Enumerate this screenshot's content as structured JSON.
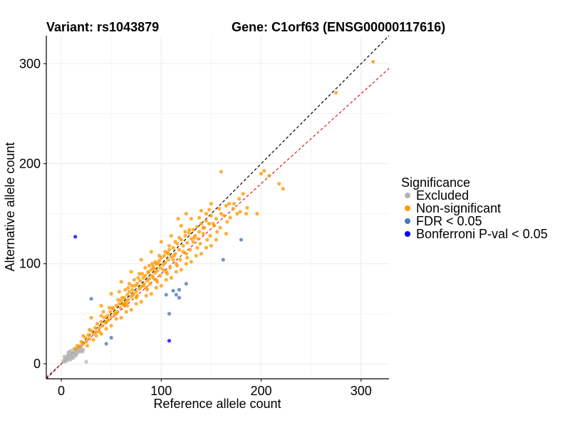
{
  "chart_data": {
    "type": "scatter",
    "title_left": "Variant: rs1043879",
    "title_right": "Gene: C1orf63 (ENSG00000117616)",
    "xlabel": "Reference allele count",
    "ylabel": "Alternative allele count",
    "xlim": [
      -15,
      328
    ],
    "ylim": [
      -15,
      328
    ],
    "xticks": [
      0,
      100,
      200,
      300
    ],
    "yticks": [
      0,
      100,
      200,
      300
    ],
    "grid": true,
    "legend_position": "right",
    "reference_lines": [
      {
        "name": "identity",
        "slope": 1.0,
        "intercept": 0,
        "color": "#000000",
        "dash": true
      },
      {
        "name": "fit",
        "slope": 0.9,
        "intercept": 0,
        "color": "#e31a1c",
        "dash": true
      }
    ],
    "legend": {
      "title": "Significance",
      "entries": [
        {
          "label": "Excluded",
          "color": "#b3b3b3"
        },
        {
          "label": "Non-significant",
          "color": "#ff9900"
        },
        {
          "label": "FDR < 0.05",
          "color": "#4a77b8"
        },
        {
          "label": "Bonferroni P-val < 0.05",
          "color": "#0000ff"
        }
      ]
    },
    "series": [
      {
        "name": "Excluded",
        "color": "#b3b3b3",
        "points": [
          [
            2,
            3
          ],
          [
            3,
            2
          ],
          [
            4,
            5
          ],
          [
            5,
            3
          ],
          [
            5,
            6
          ],
          [
            6,
            4
          ],
          [
            7,
            5
          ],
          [
            7,
            8
          ],
          [
            8,
            6
          ],
          [
            9,
            8
          ],
          [
            10,
            7
          ],
          [
            10,
            10
          ],
          [
            11,
            9
          ],
          [
            12,
            11
          ],
          [
            12,
            6
          ],
          [
            13,
            10
          ],
          [
            14,
            12
          ],
          [
            14,
            8
          ],
          [
            15,
            13
          ],
          [
            16,
            11
          ],
          [
            17,
            14
          ],
          [
            18,
            12
          ],
          [
            18,
            16
          ],
          [
            19,
            13
          ],
          [
            20,
            15
          ],
          [
            21,
            12
          ],
          [
            22,
            14
          ],
          [
            8,
            12
          ],
          [
            6,
            8
          ],
          [
            10,
            13
          ],
          [
            13,
            15
          ],
          [
            16,
            15
          ],
          [
            20,
            18
          ],
          [
            4,
            3
          ],
          [
            11,
            6
          ],
          [
            9,
            4
          ],
          [
            15,
            9
          ],
          [
            25,
            2
          ],
          [
            3,
            7
          ],
          [
            7,
            11
          ]
        ]
      },
      {
        "name": "Non-significant",
        "color": "#ff9900",
        "points": [
          [
            14,
            15
          ],
          [
            16,
            18
          ],
          [
            18,
            17
          ],
          [
            20,
            22
          ],
          [
            22,
            20
          ],
          [
            24,
            26
          ],
          [
            25,
            22
          ],
          [
            27,
            29
          ],
          [
            28,
            25
          ],
          [
            30,
            33
          ],
          [
            32,
            30
          ],
          [
            34,
            36
          ],
          [
            35,
            32
          ],
          [
            36,
            40
          ],
          [
            38,
            36
          ],
          [
            40,
            42
          ],
          [
            41,
            38
          ],
          [
            43,
            46
          ],
          [
            44,
            41
          ],
          [
            46,
            48
          ],
          [
            47,
            44
          ],
          [
            49,
            52
          ],
          [
            50,
            47
          ],
          [
            52,
            55
          ],
          [
            53,
            50
          ],
          [
            55,
            58
          ],
          [
            56,
            52
          ],
          [
            58,
            60
          ],
          [
            59,
            56
          ],
          [
            60,
            63
          ],
          [
            62,
            59
          ],
          [
            63,
            66
          ],
          [
            64,
            60
          ],
          [
            66,
            69
          ],
          [
            67,
            64
          ],
          [
            68,
            72
          ],
          [
            70,
            67
          ],
          [
            71,
            74
          ],
          [
            72,
            69
          ],
          [
            74,
            78
          ],
          [
            75,
            72
          ],
          [
            76,
            80
          ],
          [
            78,
            75
          ],
          [
            79,
            83
          ],
          [
            80,
            77
          ],
          [
            82,
            86
          ],
          [
            83,
            80
          ],
          [
            84,
            88
          ],
          [
            86,
            83
          ],
          [
            87,
            91
          ],
          [
            88,
            85
          ],
          [
            90,
            94
          ],
          [
            91,
            88
          ],
          [
            92,
            97
          ],
          [
            94,
            91
          ],
          [
            95,
            100
          ],
          [
            96,
            93
          ],
          [
            98,
            103
          ],
          [
            99,
            96
          ],
          [
            100,
            106
          ],
          [
            102,
            99
          ],
          [
            103,
            108
          ],
          [
            104,
            101
          ],
          [
            106,
            111
          ],
          [
            107,
            104
          ],
          [
            108,
            114
          ],
          [
            110,
            107
          ],
          [
            112,
            116
          ],
          [
            114,
            110
          ],
          [
            116,
            120
          ],
          [
            118,
            114
          ],
          [
            120,
            124
          ],
          [
            122,
            118
          ],
          [
            124,
            128
          ],
          [
            126,
            121
          ],
          [
            128,
            131
          ],
          [
            130,
            125
          ],
          [
            132,
            134
          ],
          [
            134,
            128
          ],
          [
            136,
            137
          ],
          [
            138,
            132
          ],
          [
            140,
            140
          ],
          [
            142,
            136
          ],
          [
            145,
            143
          ],
          [
            148,
            140
          ],
          [
            150,
            148
          ],
          [
            155,
            145
          ],
          [
            158,
            155
          ],
          [
            160,
            150
          ],
          [
            165,
            158
          ],
          [
            168,
            160
          ],
          [
            172,
            155
          ],
          [
            178,
            165
          ],
          [
            182,
            170
          ],
          [
            200,
            190
          ],
          [
            203,
            193
          ],
          [
            208,
            188
          ],
          [
            218,
            180
          ],
          [
            222,
            175
          ],
          [
            185,
            150
          ],
          [
            196,
            150
          ],
          [
            160,
            192
          ],
          [
            150,
            160
          ],
          [
            145,
            150
          ],
          [
            140,
            153
          ],
          [
            130,
            145
          ],
          [
            120,
            138
          ],
          [
            110,
            128
          ],
          [
            100,
            122
          ],
          [
            90,
            112
          ],
          [
            80,
            104
          ],
          [
            70,
            92
          ],
          [
            60,
            82
          ],
          [
            50,
            70
          ],
          [
            40,
            58
          ],
          [
            30,
            46
          ],
          [
            45,
            35
          ],
          [
            55,
            45
          ],
          [
            65,
            52
          ],
          [
            75,
            60
          ],
          [
            85,
            68
          ],
          [
            95,
            76
          ],
          [
            105,
            84
          ],
          [
            115,
            92
          ],
          [
            125,
            100
          ],
          [
            135,
            108
          ],
          [
            145,
            116
          ],
          [
            155,
            124
          ],
          [
            165,
            130
          ],
          [
            40,
            30
          ],
          [
            50,
            38
          ],
          [
            60,
            46
          ],
          [
            70,
            54
          ],
          [
            80,
            62
          ],
          [
            90,
            70
          ],
          [
            100,
            78
          ],
          [
            110,
            86
          ],
          [
            120,
            94
          ],
          [
            130,
            102
          ],
          [
            140,
            110
          ],
          [
            150,
            118
          ],
          [
            58,
            72
          ],
          [
            68,
            80
          ],
          [
            78,
            90
          ],
          [
            88,
            98
          ],
          [
            98,
            108
          ],
          [
            108,
            118
          ],
          [
            118,
            126
          ],
          [
            128,
            134
          ],
          [
            138,
            146
          ],
          [
            148,
            154
          ],
          [
            62,
            60
          ],
          [
            72,
            70
          ],
          [
            82,
            78
          ],
          [
            92,
            86
          ],
          [
            102,
            94
          ],
          [
            112,
            104
          ],
          [
            122,
            112
          ],
          [
            132,
            122
          ],
          [
            142,
            130
          ],
          [
            152,
            140
          ],
          [
            35,
            28
          ],
          [
            45,
            42
          ],
          [
            55,
            50
          ],
          [
            65,
            62
          ],
          [
            75,
            66
          ],
          [
            85,
            76
          ],
          [
            95,
            84
          ],
          [
            105,
            92
          ],
          [
            115,
            100
          ],
          [
            125,
            110
          ],
          [
            48,
            56
          ],
          [
            64,
            74
          ],
          [
            84,
            96
          ],
          [
            94,
            102
          ],
          [
            104,
            112
          ],
          [
            114,
            122
          ],
          [
            124,
            132
          ],
          [
            66,
            58
          ],
          [
            76,
            68
          ],
          [
            86,
            74
          ],
          [
            96,
            82
          ],
          [
            106,
            90
          ],
          [
            116,
            98
          ],
          [
            126,
            106
          ],
          [
            136,
            116
          ],
          [
            146,
            124
          ],
          [
            156,
            132
          ],
          [
            166,
            142
          ],
          [
            176,
            150
          ],
          [
            186,
            156
          ],
          [
            40,
            48
          ],
          [
            28,
            34
          ],
          [
            22,
            28
          ],
          [
            26,
            18
          ],
          [
            32,
            24
          ],
          [
            38,
            32
          ],
          [
            73,
            84
          ],
          [
            93,
            95
          ],
          [
            113,
            108
          ],
          [
            133,
            126
          ],
          [
            153,
            138
          ],
          [
            163,
            148
          ],
          [
            173,
            160
          ],
          [
            117,
            145
          ],
          [
            125,
            150
          ],
          [
            137,
            125
          ],
          [
            143,
            136
          ],
          [
            91,
            100
          ],
          [
            81,
            90
          ],
          [
            71,
            78
          ],
          [
            61,
            66
          ],
          [
            51,
            56
          ],
          [
            42,
            52
          ],
          [
            57,
            64
          ],
          [
            67,
            76
          ],
          [
            77,
            86
          ],
          [
            87,
            92
          ],
          [
            97,
            100
          ],
          [
            107,
            110
          ],
          [
            89,
            80
          ],
          [
            99,
            88
          ],
          [
            109,
            96
          ],
          [
            119,
            104
          ],
          [
            129,
            114
          ],
          [
            139,
            120
          ],
          [
            149,
            128
          ],
          [
            159,
            136
          ],
          [
            169,
            146
          ],
          [
            179,
            152
          ],
          [
            275,
            271
          ],
          [
            312,
            302
          ]
        ]
      },
      {
        "name": "FDR < 0.05",
        "color": "#4a77b8",
        "points": [
          [
            30,
            65
          ],
          [
            50,
            26
          ],
          [
            45,
            20
          ],
          [
            105,
            69
          ],
          [
            115,
            69
          ],
          [
            118,
            66
          ],
          [
            118,
            74
          ],
          [
            125,
            80
          ],
          [
            108,
            50
          ],
          [
            162,
            104
          ],
          [
            180,
            124
          ],
          [
            112,
            73
          ]
        ]
      },
      {
        "name": "Bonferroni P-val < 0.05",
        "color": "#0000ff",
        "points": [
          [
            14,
            127
          ],
          [
            108,
            23
          ]
        ]
      }
    ]
  }
}
